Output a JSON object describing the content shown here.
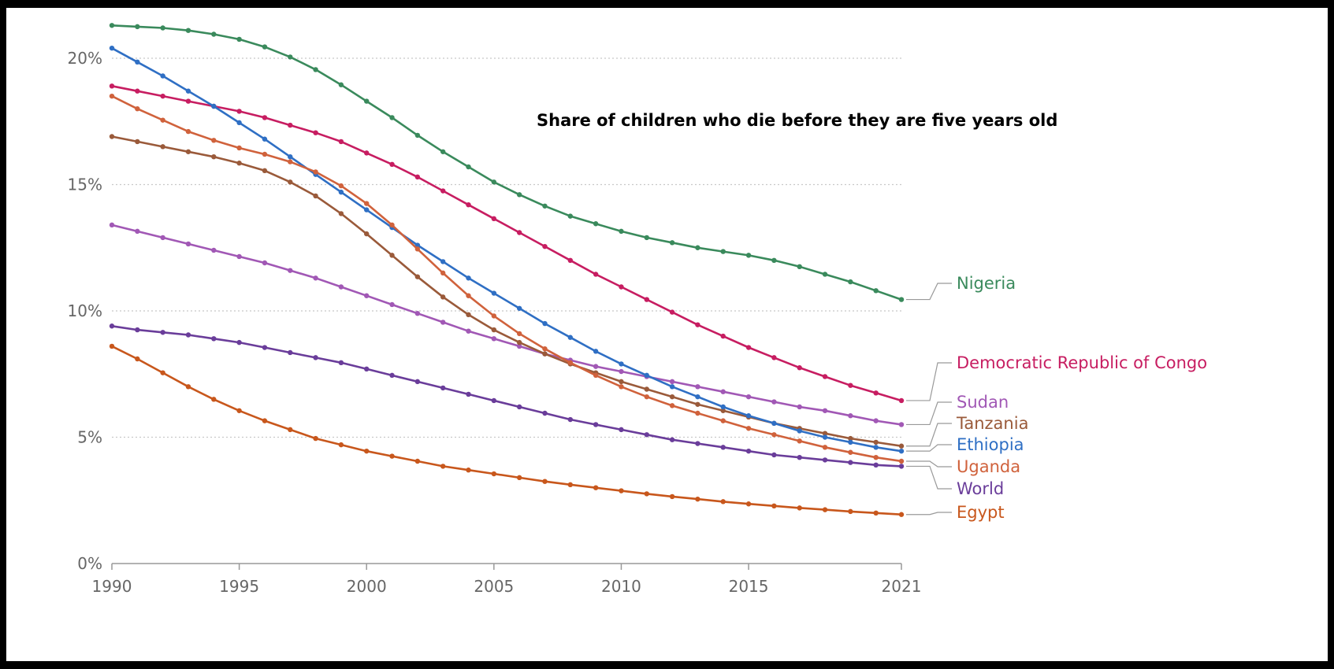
{
  "chart_data": {
    "type": "line",
    "title": "Share of children who die before they are five years old",
    "xlabel": "",
    "ylabel": "",
    "xlim": [
      1990,
      2021
    ],
    "ylim": [
      0,
      21
    ],
    "x_ticks": [
      "1990",
      "1995",
      "2000",
      "2005",
      "2010",
      "2015",
      "2021"
    ],
    "y_ticks": [
      "0%",
      "5%",
      "10%",
      "15%",
      "20%"
    ],
    "grid": "horizontal dotted",
    "legend": "labels at right end of lines",
    "years": [
      1990,
      1991,
      1992,
      1993,
      1994,
      1995,
      1996,
      1997,
      1998,
      1999,
      2000,
      2001,
      2002,
      2003,
      2004,
      2005,
      2006,
      2007,
      2008,
      2009,
      2010,
      2011,
      2012,
      2013,
      2014,
      2015,
      2016,
      2017,
      2018,
      2019,
      2020,
      2021
    ],
    "series": [
      {
        "name": "Nigeria",
        "color": "#3a8a5c",
        "values": [
          21.3,
          21.25,
          21.2,
          21.1,
          20.95,
          20.75,
          20.45,
          20.05,
          19.55,
          18.95,
          18.3,
          17.65,
          16.95,
          16.3,
          15.7,
          15.1,
          14.6,
          14.15,
          13.75,
          13.45,
          13.15,
          12.9,
          12.7,
          12.5,
          12.35,
          12.2,
          12.0,
          11.75,
          11.45,
          11.15,
          10.8,
          10.45
        ]
      },
      {
        "name": "Democratic Republic of Congo",
        "color": "#c71d61",
        "values": [
          18.9,
          18.7,
          18.5,
          18.3,
          18.1,
          17.9,
          17.65,
          17.35,
          17.05,
          16.7,
          16.25,
          15.8,
          15.3,
          14.75,
          14.2,
          13.65,
          13.1,
          12.55,
          12.0,
          11.45,
          10.95,
          10.45,
          9.95,
          9.45,
          9.0,
          8.55,
          8.15,
          7.75,
          7.4,
          7.05,
          6.75,
          6.45
        ]
      },
      {
        "name": "Sudan",
        "color": "#a158b5",
        "values": [
          13.4,
          13.15,
          12.9,
          12.65,
          12.4,
          12.15,
          11.9,
          11.6,
          11.3,
          10.95,
          10.6,
          10.25,
          9.9,
          9.55,
          9.2,
          8.9,
          8.6,
          8.3,
          8.05,
          7.8,
          7.6,
          7.4,
          7.2,
          7.0,
          6.8,
          6.6,
          6.4,
          6.2,
          6.05,
          5.85,
          5.65,
          5.5
        ]
      },
      {
        "name": "Tanzania",
        "color": "#9a5a3a",
        "values": [
          16.9,
          16.7,
          16.5,
          16.3,
          16.1,
          15.85,
          15.55,
          15.1,
          14.55,
          13.85,
          13.05,
          12.2,
          11.35,
          10.55,
          9.85,
          9.25,
          8.75,
          8.3,
          7.9,
          7.55,
          7.2,
          6.9,
          6.6,
          6.3,
          6.05,
          5.8,
          5.55,
          5.35,
          5.15,
          4.95,
          4.8,
          4.65
        ]
      },
      {
        "name": "Ethiopia",
        "color": "#2f6fc4",
        "values": [
          20.4,
          19.85,
          19.3,
          18.7,
          18.1,
          17.45,
          16.8,
          16.1,
          15.4,
          14.7,
          14.0,
          13.3,
          12.6,
          11.95,
          11.3,
          10.7,
          10.1,
          9.5,
          8.95,
          8.4,
          7.9,
          7.45,
          7.0,
          6.6,
          6.2,
          5.85,
          5.55,
          5.25,
          5.0,
          4.8,
          4.6,
          4.45
        ]
      },
      {
        "name": "Uganda",
        "color": "#d0623c",
        "values": [
          18.5,
          18.0,
          17.55,
          17.1,
          16.75,
          16.45,
          16.2,
          15.9,
          15.5,
          14.95,
          14.25,
          13.4,
          12.45,
          11.5,
          10.6,
          9.8,
          9.1,
          8.5,
          7.95,
          7.45,
          7.0,
          6.6,
          6.25,
          5.95,
          5.65,
          5.35,
          5.1,
          4.85,
          4.6,
          4.4,
          4.2,
          4.05
        ]
      },
      {
        "name": "World",
        "color": "#6a3d9a",
        "values": [
          9.4,
          9.25,
          9.15,
          9.05,
          8.9,
          8.75,
          8.55,
          8.35,
          8.15,
          7.95,
          7.7,
          7.45,
          7.2,
          6.95,
          6.7,
          6.45,
          6.2,
          5.95,
          5.7,
          5.5,
          5.3,
          5.1,
          4.9,
          4.75,
          4.6,
          4.45,
          4.3,
          4.2,
          4.1,
          4.0,
          3.9,
          3.85
        ]
      },
      {
        "name": "Egypt",
        "color": "#c8571c",
        "values": [
          8.6,
          8.1,
          7.55,
          7.0,
          6.5,
          6.05,
          5.65,
          5.3,
          4.95,
          4.7,
          4.45,
          4.25,
          4.05,
          3.85,
          3.7,
          3.55,
          3.4,
          3.25,
          3.12,
          3.0,
          2.88,
          2.76,
          2.65,
          2.55,
          2.45,
          2.36,
          2.28,
          2.2,
          2.13,
          2.06,
          2.0,
          1.94
        ]
      }
    ]
  }
}
